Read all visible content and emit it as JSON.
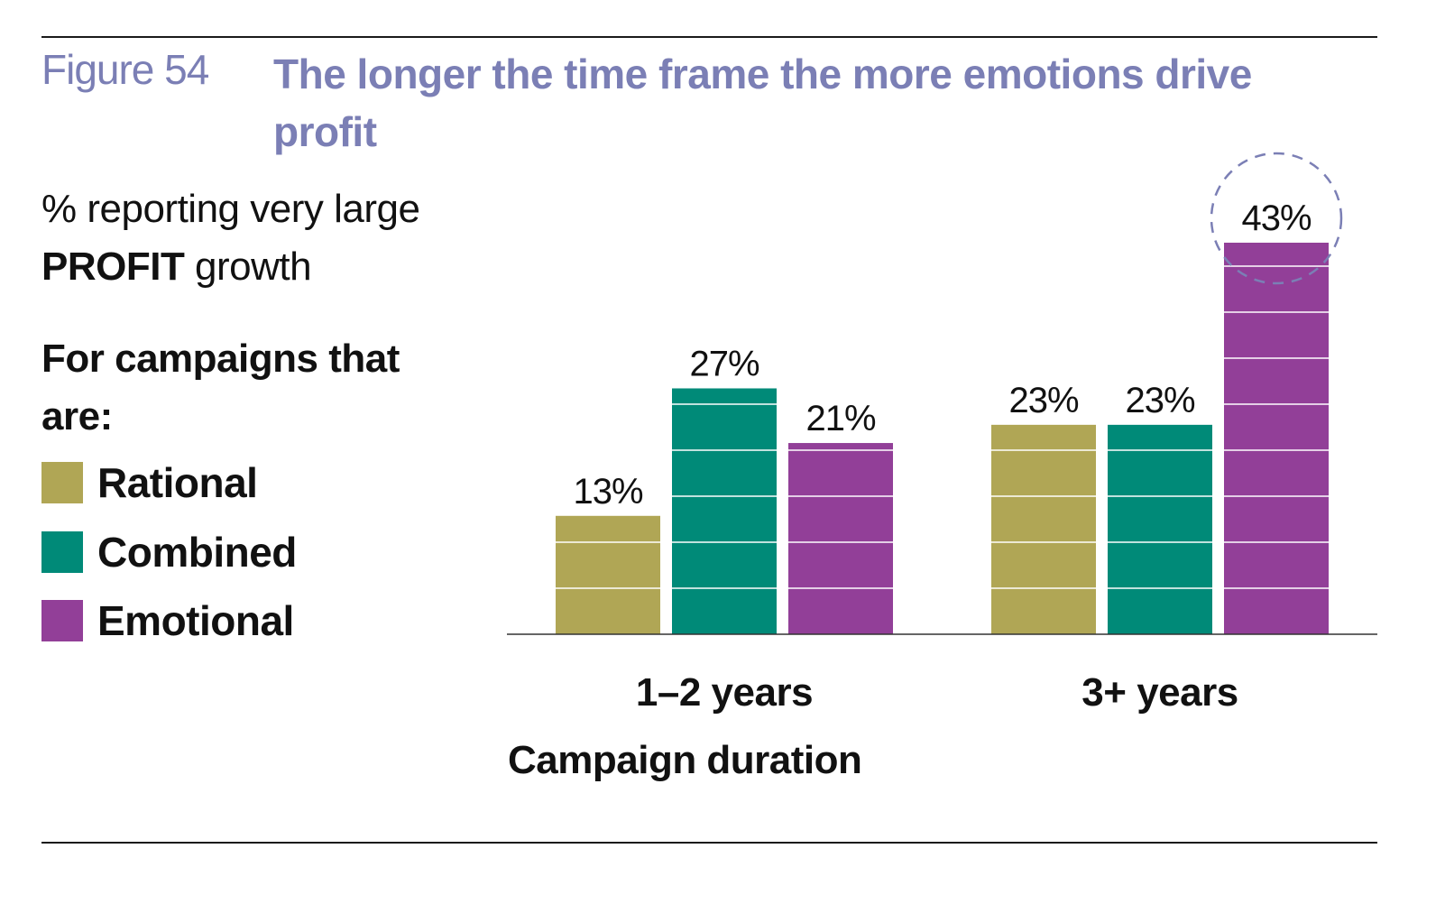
{
  "figure": {
    "label": "Figure 54",
    "title": "The longer the time frame the more emotions drive profit"
  },
  "subtitle": {
    "line1": "% reporting very large",
    "bold": "PROFIT",
    "rest": " growth"
  },
  "legend": {
    "heading": "For campaigns that are:",
    "items": [
      {
        "label": "Rational",
        "color": "#b0a655"
      },
      {
        "label": "Combined",
        "color": "#008a78"
      },
      {
        "label": "Emotional",
        "color": "#923f98"
      }
    ]
  },
  "chart_data": {
    "type": "bar",
    "categories": [
      "1–2 years",
      "3+ years"
    ],
    "series": [
      {
        "name": "Rational",
        "values": [
          13,
          23
        ],
        "labels": [
          "13%",
          "23%"
        ],
        "color": "#b0a655"
      },
      {
        "name": "Combined",
        "values": [
          27,
          23
        ],
        "labels": [
          "27%",
          "23%"
        ],
        "color": "#008a78"
      },
      {
        "name": "Emotional",
        "values": [
          21,
          43
        ],
        "labels": [
          "21%",
          "43%"
        ],
        "color": "#923f98"
      }
    ],
    "xlabel": "Campaign duration",
    "ylabel": "",
    "ylim": [
      0,
      43
    ],
    "grid": false,
    "highlight": {
      "series": "Emotional",
      "category": "3+ years",
      "style": "dashed-circle"
    }
  }
}
